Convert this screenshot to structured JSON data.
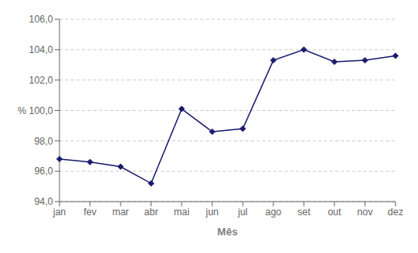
{
  "chart_data": {
    "type": "line",
    "xlabel": "Mês",
    "categories": [
      "jan",
      "fev",
      "mar",
      "abr",
      "mai",
      "jun",
      "jul",
      "ago",
      "set",
      "out",
      "nov",
      "dez"
    ],
    "values": [
      96.8,
      96.6,
      96.3,
      95.2,
      100.1,
      98.6,
      98.8,
      103.3,
      104.0,
      103.2,
      103.3,
      103.6
    ],
    "color": "#1a1a6e",
    "marker": "diamond",
    "ylim": [
      94.0,
      106.0
    ],
    "yticks": [
      {
        "value": 94.0,
        "label": "94,0"
      },
      {
        "value": 96.0,
        "label": "96,0"
      },
      {
        "value": 98.0,
        "label": "98,0"
      },
      {
        "value": 100.0,
        "label": "% 100,0"
      },
      {
        "value": 102.0,
        "label": "102,0"
      },
      {
        "value": 104.0,
        "label": "104,0"
      },
      {
        "value": 106.0,
        "label": "106,0"
      }
    ],
    "grid": "y"
  }
}
